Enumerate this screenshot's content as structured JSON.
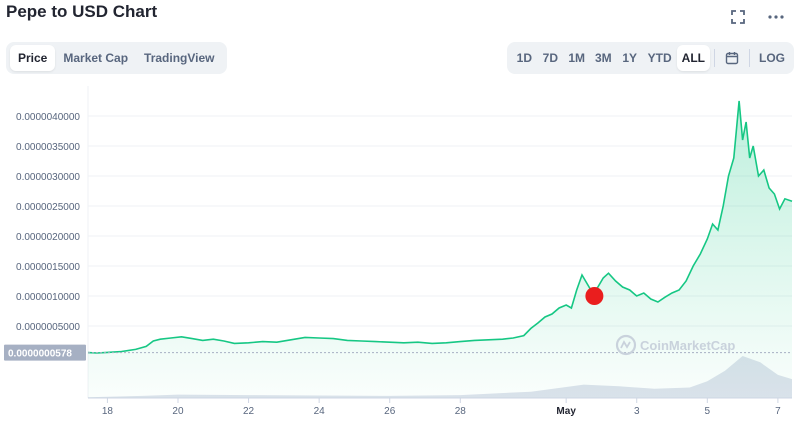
{
  "header": {
    "title": "Pepe to USD Chart",
    "fullscreen_icon": "expand-icon",
    "more_icon": "more-horizontal-icon"
  },
  "view_tabs": [
    {
      "label": "Price",
      "active": true
    },
    {
      "label": "Market Cap",
      "active": false
    },
    {
      "label": "TradingView",
      "active": false
    }
  ],
  "range_tabs": [
    {
      "label": "1D",
      "active": false
    },
    {
      "label": "7D",
      "active": false
    },
    {
      "label": "1M",
      "active": false
    },
    {
      "label": "3M",
      "active": false
    },
    {
      "label": "1Y",
      "active": false
    },
    {
      "label": "YTD",
      "active": false
    },
    {
      "label": "ALL",
      "active": true
    }
  ],
  "calendar_icon": "calendar-icon",
  "log_label": "LOG",
  "watermark": "CoinMarketCap",
  "current_price_label": "0.0000000578",
  "colors": {
    "line": "#16c784",
    "fill_top": "#16c784",
    "marker": "#ea1e1e",
    "price_tag_bg": "#a6b0c3",
    "volume": "#cfd6e4"
  },
  "chart_data": {
    "type": "line",
    "title": "",
    "xlabel": "",
    "ylabel": "",
    "ylim": [
      0,
      4.5e-06
    ],
    "y_ticks": [
      "0.0000005000",
      "0.0000010000",
      "0.0000015000",
      "0.0000020000",
      "0.0000025000",
      "0.0000030000",
      "0.0000035000",
      "0.0000040000"
    ],
    "y_tick_values": [
      5e-07,
      1e-06,
      1.5e-06,
      2e-06,
      2.5e-06,
      3e-06,
      3.5e-06,
      4e-06
    ],
    "x_ticks": [
      {
        "label": "18",
        "t": 1.0
      },
      {
        "label": "20",
        "t": 3.0
      },
      {
        "label": "22",
        "t": 5.0
      },
      {
        "label": "24",
        "t": 7.0
      },
      {
        "label": "26",
        "t": 9.0
      },
      {
        "label": "28",
        "t": 11.0
      },
      {
        "label": "May",
        "t": 14.0,
        "bold": true
      },
      {
        "label": "3",
        "t": 16.0
      },
      {
        "label": "5",
        "t": 18.0
      },
      {
        "label": "7",
        "t": 20.0
      }
    ],
    "x_range": [
      0.45,
      20.4
    ],
    "series": [
      {
        "points": [
          [
            0.45,
            5.6e-08
          ],
          [
            0.7,
            5e-08
          ],
          [
            1.0,
            6e-08
          ],
          [
            1.4,
            7.5e-08
          ],
          [
            1.8,
            1.1e-07
          ],
          [
            2.1,
            1.6e-07
          ],
          [
            2.3,
            2.5e-07
          ],
          [
            2.5,
            2.8e-07
          ],
          [
            2.8,
            3e-07
          ],
          [
            3.1,
            3.2e-07
          ],
          [
            3.4,
            2.9e-07
          ],
          [
            3.7,
            2.6e-07
          ],
          [
            4.0,
            2.8e-07
          ],
          [
            4.3,
            2.5e-07
          ],
          [
            4.6,
            2.1e-07
          ],
          [
            5.0,
            2.2e-07
          ],
          [
            5.4,
            2.4e-07
          ],
          [
            5.8,
            2.3e-07
          ],
          [
            6.2,
            2.7e-07
          ],
          [
            6.6,
            3.1e-07
          ],
          [
            7.0,
            3e-07
          ],
          [
            7.4,
            2.9e-07
          ],
          [
            7.8,
            2.6e-07
          ],
          [
            8.2,
            2.5e-07
          ],
          [
            8.6,
            2.4e-07
          ],
          [
            9.0,
            2.3e-07
          ],
          [
            9.4,
            2.2e-07
          ],
          [
            9.8,
            2.3e-07
          ],
          [
            10.2,
            2.1e-07
          ],
          [
            10.6,
            2.2e-07
          ],
          [
            11.0,
            2.4e-07
          ],
          [
            11.4,
            2.6e-07
          ],
          [
            11.8,
            2.7e-07
          ],
          [
            12.2,
            2.8e-07
          ],
          [
            12.5,
            3e-07
          ],
          [
            12.8,
            3.4e-07
          ],
          [
            13.0,
            4.6e-07
          ],
          [
            13.2,
            5.5e-07
          ],
          [
            13.4,
            6.5e-07
          ],
          [
            13.6,
            7e-07
          ],
          [
            13.8,
            8e-07
          ],
          [
            14.0,
            8.5e-07
          ],
          [
            14.15,
            8e-07
          ],
          [
            14.3,
            1.1e-06
          ],
          [
            14.45,
            1.35e-06
          ],
          [
            14.6,
            1.2e-06
          ],
          [
            14.75,
            1.05e-06
          ],
          [
            14.9,
            1.15e-06
          ],
          [
            15.05,
            1.3e-06
          ],
          [
            15.2,
            1.38e-06
          ],
          [
            15.4,
            1.25e-06
          ],
          [
            15.6,
            1.15e-06
          ],
          [
            15.8,
            1.1e-06
          ],
          [
            16.0,
            1e-06
          ],
          [
            16.2,
            1.05e-06
          ],
          [
            16.4,
            9.5e-07
          ],
          [
            16.6,
            9e-07
          ],
          [
            16.8,
            9.8e-07
          ],
          [
            17.0,
            1.05e-06
          ],
          [
            17.2,
            1.1e-06
          ],
          [
            17.4,
            1.25e-06
          ],
          [
            17.6,
            1.5e-06
          ],
          [
            17.8,
            1.7e-06
          ],
          [
            18.0,
            1.95e-06
          ],
          [
            18.15,
            2.2e-06
          ],
          [
            18.3,
            2.1e-06
          ],
          [
            18.45,
            2.5e-06
          ],
          [
            18.6,
            3e-06
          ],
          [
            18.75,
            3.3e-06
          ],
          [
            18.9,
            4.25e-06
          ],
          [
            19.0,
            3.6e-06
          ],
          [
            19.1,
            3.9e-06
          ],
          [
            19.2,
            3.3e-06
          ],
          [
            19.3,
            3.5e-06
          ],
          [
            19.45,
            3e-06
          ],
          [
            19.6,
            3.1e-06
          ],
          [
            19.75,
            2.8e-06
          ],
          [
            19.9,
            2.7e-06
          ],
          [
            20.05,
            2.45e-06
          ],
          [
            20.2,
            2.62e-06
          ],
          [
            20.4,
            2.58e-06
          ]
        ]
      }
    ],
    "marker_point": [
      14.8,
      1e-06
    ],
    "volume": [
      [
        0.45,
        0.02
      ],
      [
        2.0,
        0.05
      ],
      [
        3.0,
        0.08
      ],
      [
        5.0,
        0.07
      ],
      [
        7.0,
        0.06
      ],
      [
        9.0,
        0.05
      ],
      [
        11.0,
        0.07
      ],
      [
        13.0,
        0.15
      ],
      [
        14.5,
        0.32
      ],
      [
        15.5,
        0.28
      ],
      [
        16.5,
        0.22
      ],
      [
        17.5,
        0.25
      ],
      [
        18.0,
        0.4
      ],
      [
        18.5,
        0.65
      ],
      [
        19.0,
        1.0
      ],
      [
        19.5,
        0.85
      ],
      [
        20.0,
        0.55
      ],
      [
        20.4,
        0.45
      ]
    ]
  }
}
